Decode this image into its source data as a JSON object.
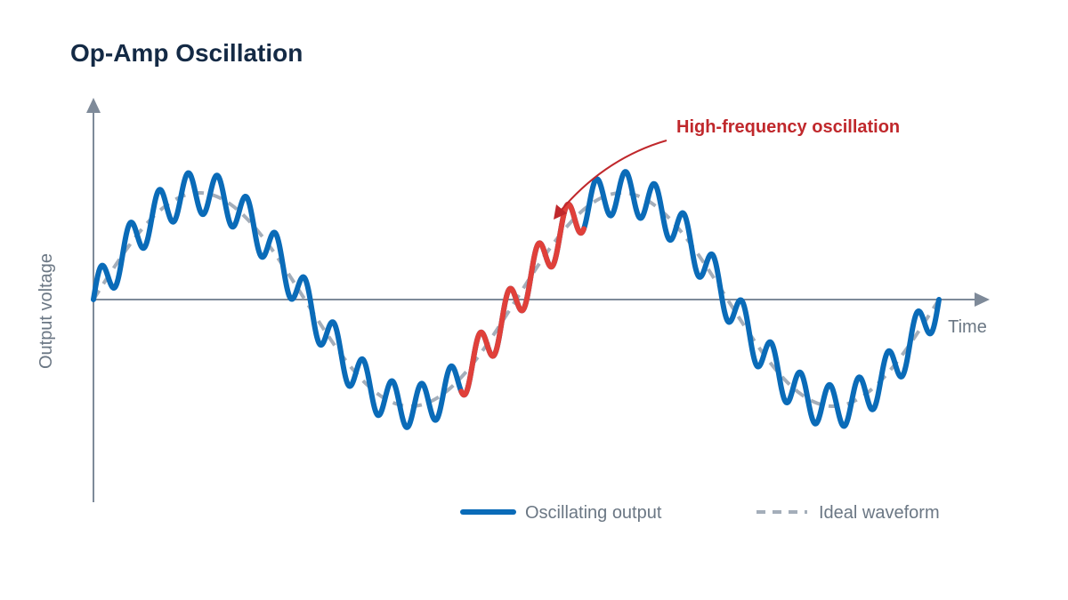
{
  "chart_data": {
    "type": "line",
    "title": "Op-Amp Oscillation",
    "xlabel": "Time",
    "ylabel": "Output voltage",
    "x_unit": "cycles",
    "xlim": [
      0,
      2.03
    ],
    "ylim": [
      -1.55,
      1.55
    ],
    "grid": false,
    "legend_position": "bottom-right",
    "series": [
      {
        "name": "Oscillating output",
        "style": "solid",
        "color": "#0a6bb8",
        "fundamental_amplitude": 1.0,
        "ripple_amplitude": 0.2,
        "ripple_to_fundamental_frequency_ratio": 14.5,
        "x": [
          0,
          0.1,
          0.2,
          0.3,
          0.4,
          0.5,
          0.6,
          0.7,
          0.8,
          0.9,
          1.0,
          1.1,
          1.2,
          1.3,
          1.4,
          1.5,
          1.6,
          1.7,
          1.8,
          1.9,
          2.0
        ],
        "y": [
          0,
          0.43,
          1.0,
          0.96,
          0.43,
          -0.04,
          -0.52,
          -1.06,
          -0.75,
          -0.4,
          0.04,
          0.71,
          1.0,
          0.78,
          0.57,
          -0.04,
          -0.76,
          -1.0,
          -0.75,
          -0.59,
          0.04
        ]
      },
      {
        "name": "Ideal waveform",
        "style": "dashed",
        "color": "#a4aeba",
        "amplitude": 1.0,
        "x": [
          0,
          0.1,
          0.2,
          0.3,
          0.4,
          0.5,
          0.6,
          0.7,
          0.8,
          0.9,
          1.0,
          1.1,
          1.2,
          1.3,
          1.4,
          1.5,
          1.6,
          1.7,
          1.8,
          1.9,
          2.0
        ],
        "y": [
          0,
          0.59,
          0.95,
          0.95,
          0.59,
          0,
          -0.59,
          -0.95,
          -0.95,
          -0.59,
          0,
          0.59,
          0.95,
          0.95,
          0.59,
          0,
          -0.59,
          -0.95,
          -0.95,
          -0.59,
          0
        ]
      }
    ],
    "highlight": {
      "x_range": [
        0.87,
        1.16
      ],
      "color": "#e0403a"
    },
    "annotations": [
      {
        "text": "High-frequency oscillation",
        "color": "#c0282c",
        "points_to_x": 1.14
      }
    ],
    "colors": {
      "axis": "#7e8a99",
      "title": "#142a45",
      "label": "#6b7784"
    }
  }
}
